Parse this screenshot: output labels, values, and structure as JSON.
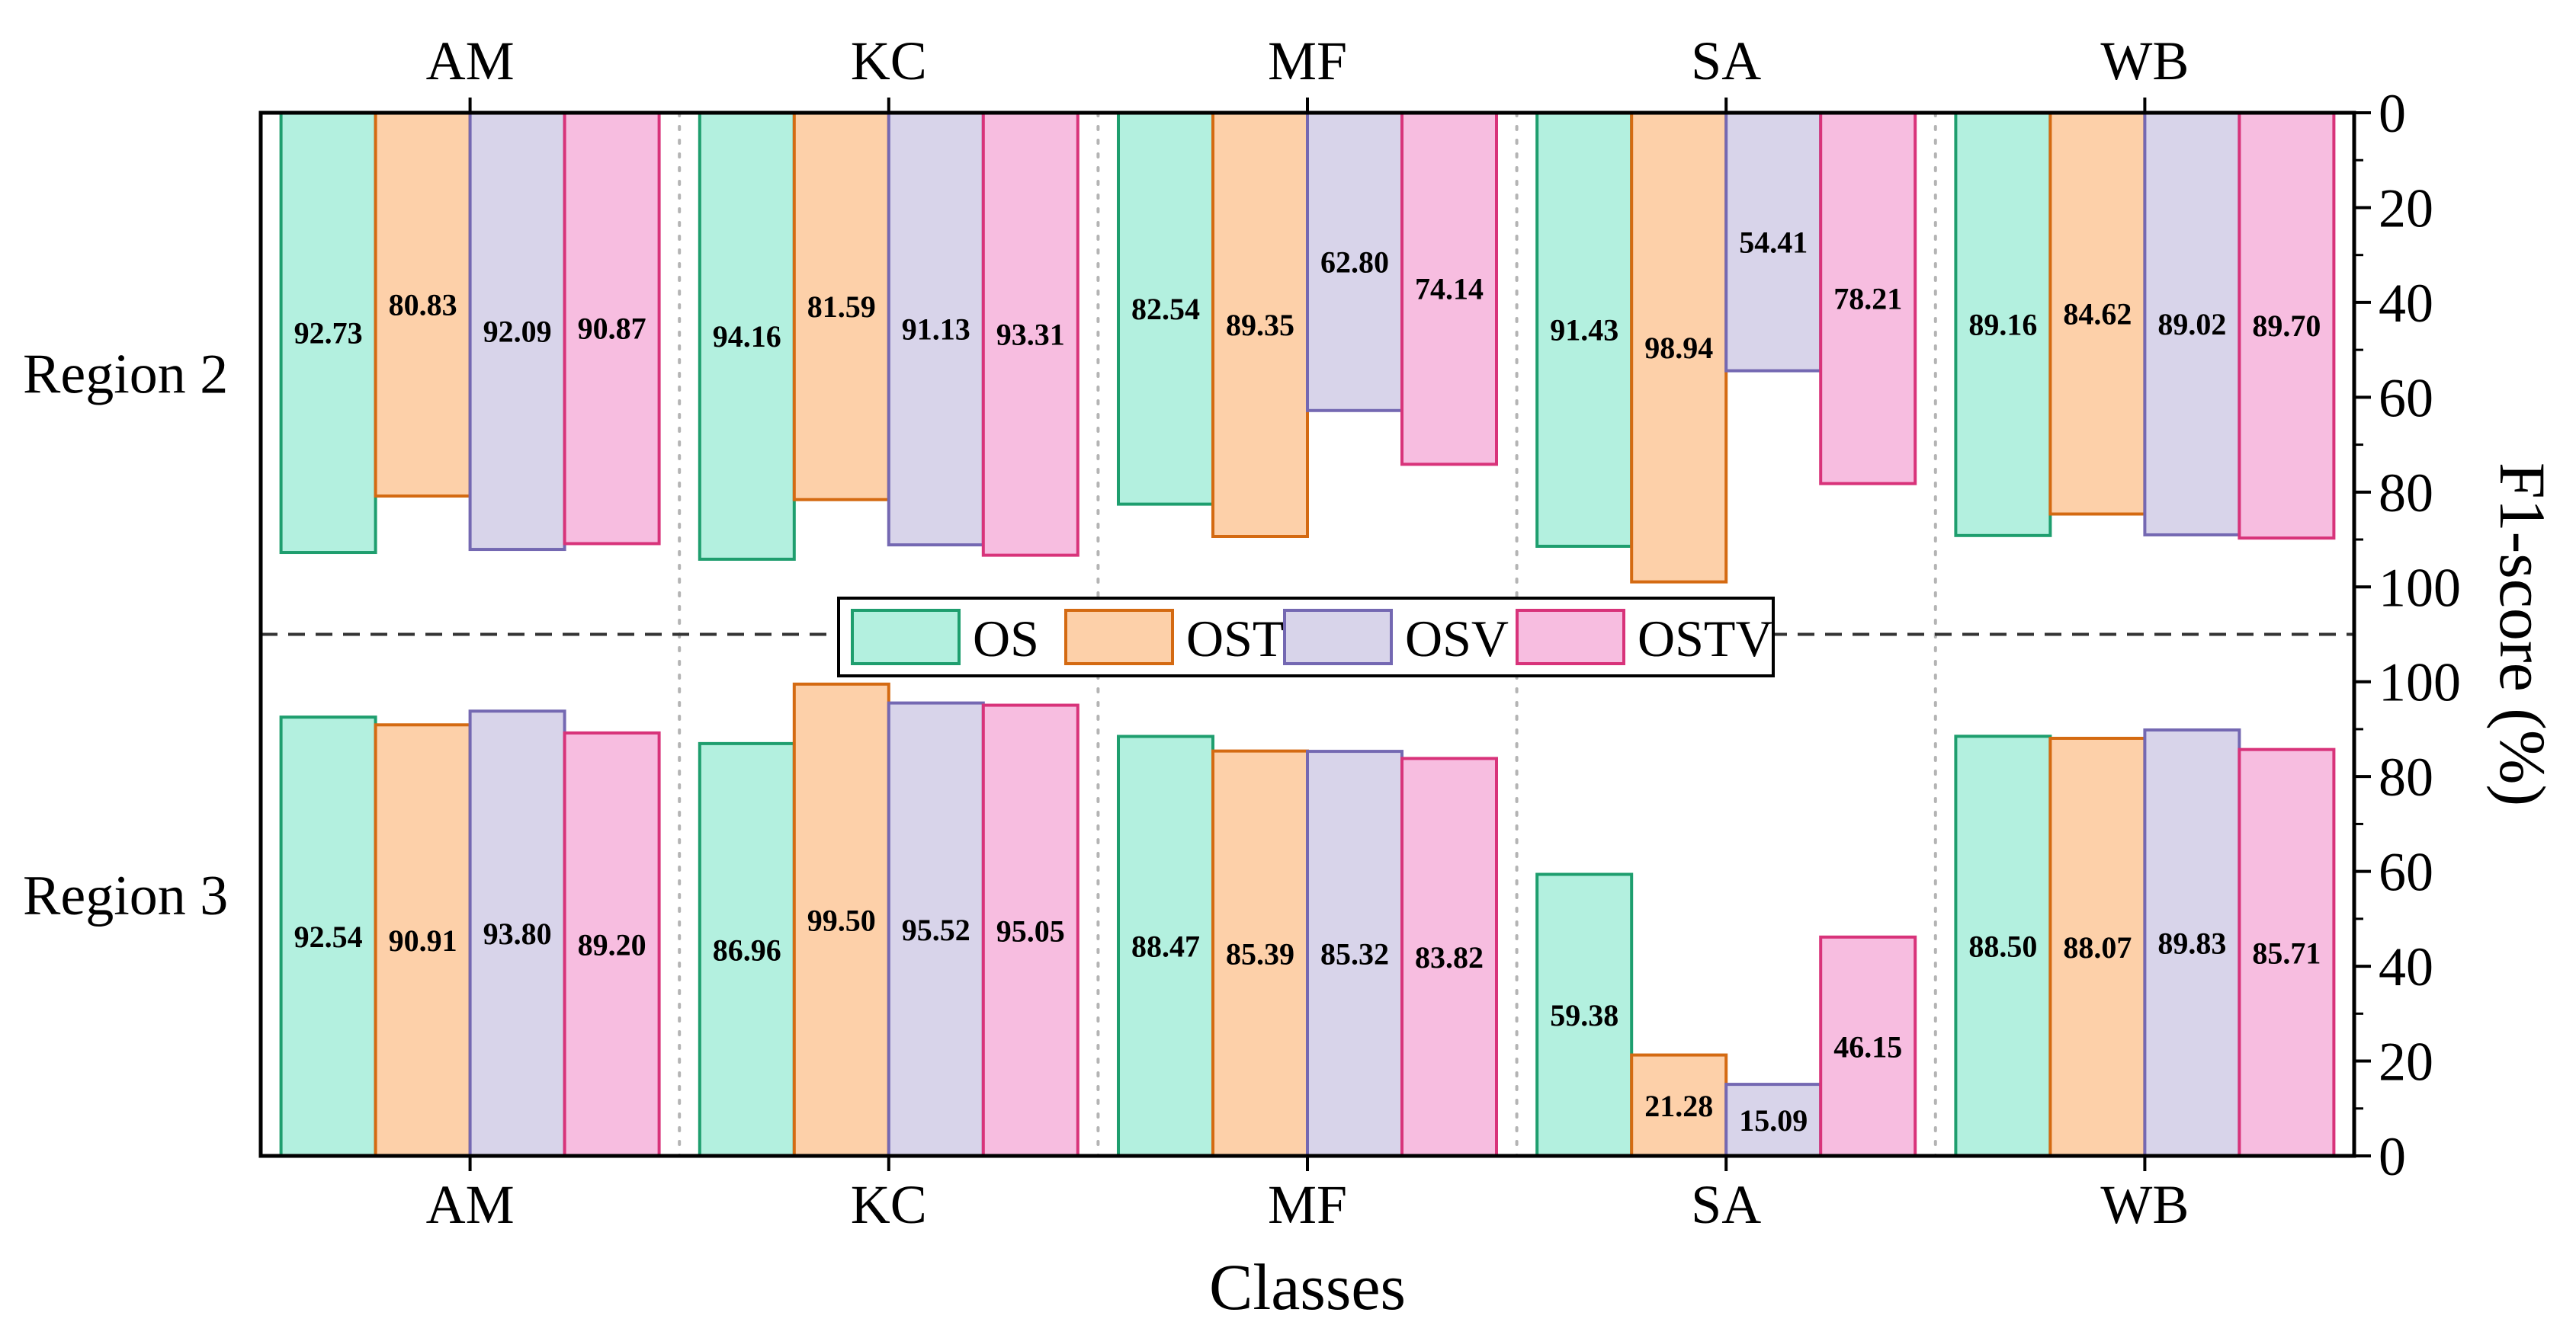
{
  "chart_data": {
    "type": "bar",
    "categories": [
      "AM",
      "KC",
      "MF",
      "SA",
      "WB"
    ],
    "xlabel": "Classes",
    "ylabel": "F1-score (%)",
    "series": [
      {
        "name": "OS",
        "fill": "#b3f0df",
        "stroke": "#1e9e6e"
      },
      {
        "name": "OST",
        "fill": "#fdd0a9",
        "stroke": "#d46a12"
      },
      {
        "name": "OSV",
        "fill": "#d8d4ea",
        "stroke": "#7468b2"
      },
      {
        "name": "OSTV",
        "fill": "#f7bde0",
        "stroke": "#d8337a"
      }
    ],
    "panels": [
      {
        "label": "Region 2",
        "direction": "down",
        "ylim": [
          0,
          110
        ],
        "ticks": [
          "0",
          "20",
          "40",
          "60",
          "80",
          "100"
        ],
        "tick_values": [
          0,
          20,
          40,
          60,
          80,
          100
        ],
        "values": [
          [
            92.73,
            80.83,
            92.09,
            90.87
          ],
          [
            94.16,
            81.59,
            91.13,
            93.31
          ],
          [
            82.54,
            89.35,
            62.8,
            74.14
          ],
          [
            91.43,
            98.94,
            54.41,
            78.21
          ],
          [
            89.16,
            84.62,
            89.02,
            89.7
          ]
        ],
        "labels": [
          [
            "92.73",
            "80.83",
            "92.09",
            "90.87"
          ],
          [
            "94.16",
            "81.59",
            "91.13",
            "93.31"
          ],
          [
            "82.54",
            "89.35",
            "62.80",
            "74.14"
          ],
          [
            "91.43",
            "98.94",
            "54.41",
            "78.21"
          ],
          [
            "89.16",
            "84.62",
            "89.02",
            "89.70"
          ]
        ]
      },
      {
        "label": "Region 3",
        "direction": "up",
        "ylim": [
          0,
          110
        ],
        "ticks": [
          "0",
          "20",
          "40",
          "60",
          "80",
          "100"
        ],
        "tick_values": [
          0,
          20,
          40,
          60,
          80,
          100
        ],
        "values": [
          [
            92.54,
            90.91,
            93.8,
            89.2
          ],
          [
            86.96,
            99.5,
            95.52,
            95.05
          ],
          [
            88.47,
            85.39,
            85.32,
            83.82
          ],
          [
            59.38,
            21.28,
            15.09,
            46.15
          ],
          [
            88.5,
            88.07,
            89.83,
            85.71
          ]
        ],
        "labels": [
          [
            "92.54",
            "90.91",
            "93.80",
            "89.20"
          ],
          [
            "86.96",
            "99.50",
            "95.52",
            "95.05"
          ],
          [
            "88.47",
            "85.39",
            "85.32",
            "83.82"
          ],
          [
            "59.38",
            "21.28",
            "15.09",
            "46.15"
          ],
          [
            "88.50",
            "88.07",
            "89.83",
            "85.71"
          ]
        ]
      }
    ]
  }
}
